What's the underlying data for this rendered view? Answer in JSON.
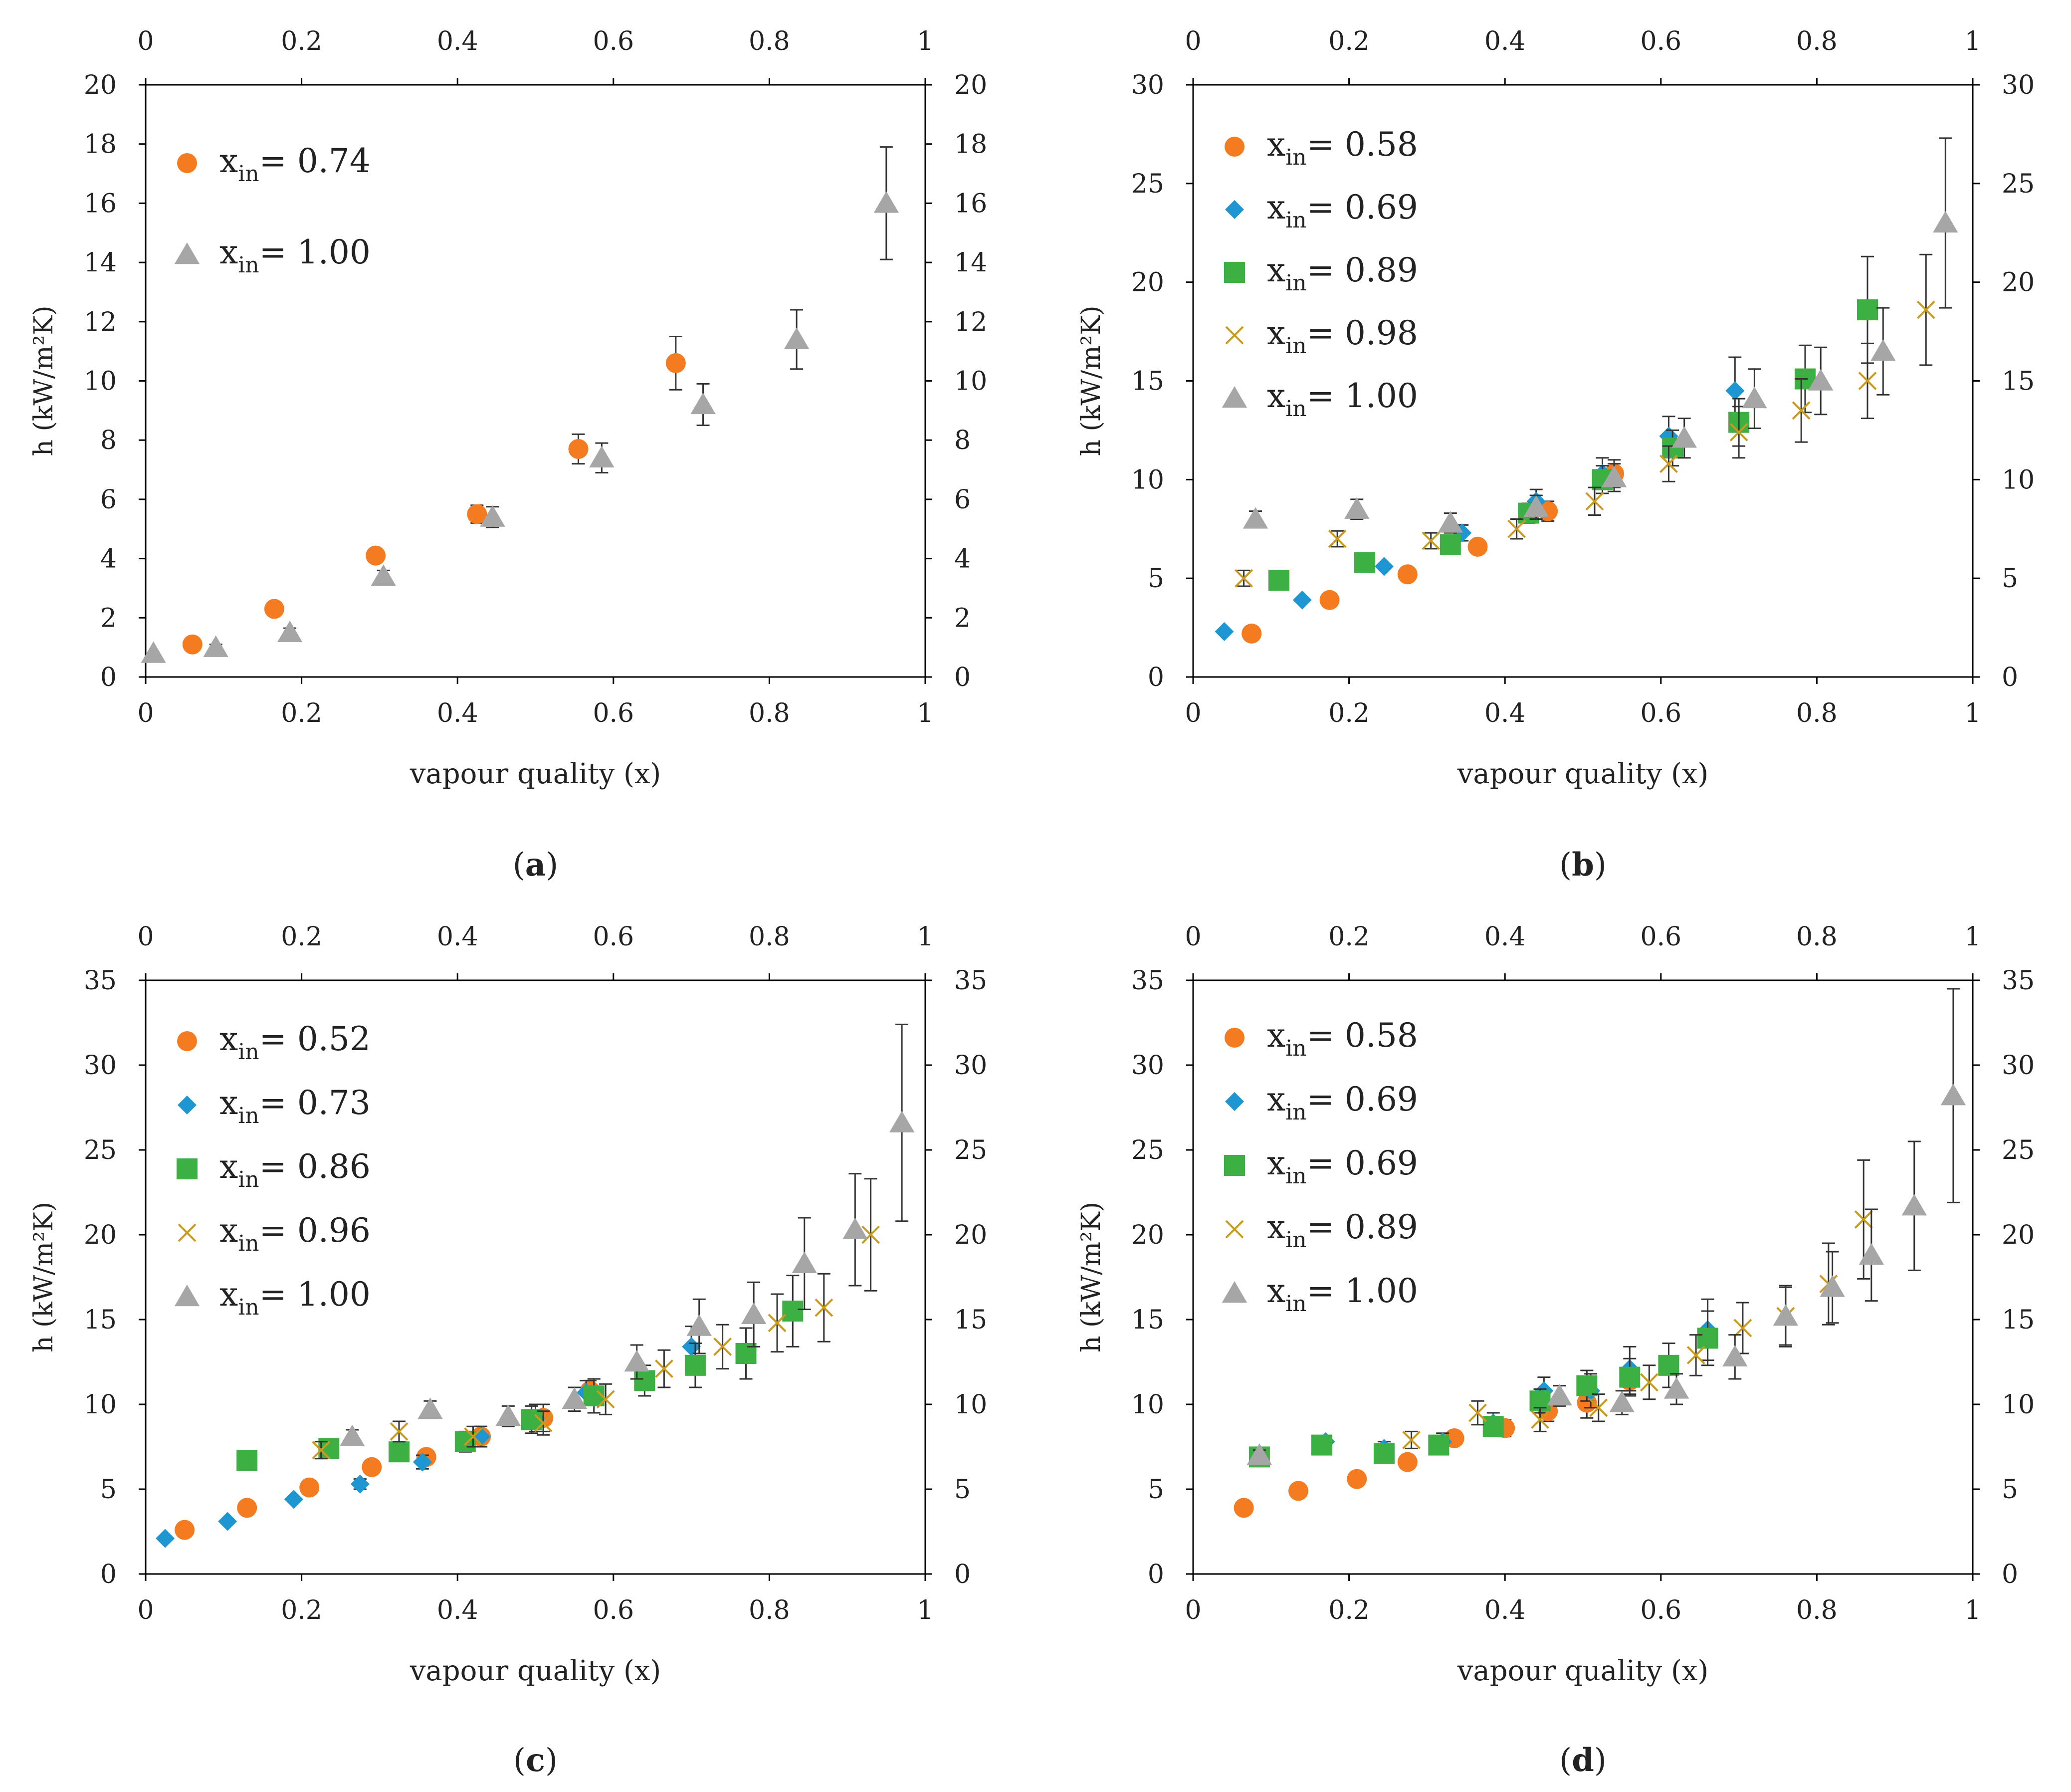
{
  "figure_colors": {
    "orange": "#f47b20",
    "blue": "#1e96d2",
    "green": "#3cb043",
    "gold": "#c99a1e",
    "gray": "#a6a6a6",
    "axis": "#000000",
    "errorbar": "#333333"
  },
  "chart_data": [
    {
      "type": "scatter",
      "panel_label": "(a)",
      "panel_letter": "a",
      "xlabel": "vapour quality (x)",
      "ylabel": "h (kW/m²K)",
      "xlim": [
        0,
        1
      ],
      "ylim": [
        0,
        20
      ],
      "x_ticks": [
        "0",
        "0.2",
        "0.4",
        "0.6",
        "0.8",
        "1"
      ],
      "y_ticks": [
        "0",
        "2",
        "4",
        "6",
        "8",
        "10",
        "12",
        "14",
        "16",
        "18",
        "20"
      ],
      "series": [
        {
          "name": "x_in= 0.74",
          "legend_var": "x",
          "legend_sub": "in",
          "legend_value": "= 0.74",
          "marker": "circle",
          "color": "#f47b20",
          "points": [
            [
              0.06,
              1.1,
              0
            ],
            [
              0.165,
              2.3,
              0
            ],
            [
              0.295,
              4.1,
              0
            ],
            [
              0.425,
              5.5,
              0.3
            ],
            [
              0.555,
              7.7,
              0.5
            ],
            [
              0.68,
              10.6,
              0.9
            ]
          ]
        },
        {
          "name": "x_in= 1.00",
          "legend_var": "x",
          "legend_sub": "in",
          "legend_value": "= 1.00",
          "marker": "triangle",
          "color": "#a6a6a6",
          "points": [
            [
              0.01,
              0.8,
              0
            ],
            [
              0.09,
              1.0,
              0.1
            ],
            [
              0.185,
              1.5,
              0.15
            ],
            [
              0.305,
              3.4,
              0.2
            ],
            [
              0.445,
              5.4,
              0.35
            ],
            [
              0.585,
              7.4,
              0.5
            ],
            [
              0.715,
              9.2,
              0.7
            ],
            [
              0.835,
              11.4,
              1.0
            ],
            [
              0.95,
              16.0,
              1.9
            ]
          ]
        }
      ]
    },
    {
      "type": "scatter",
      "panel_label": "(b)",
      "panel_letter": "b",
      "xlabel": "vapour quality (x)",
      "ylabel": "h (kW/m²K)",
      "xlim": [
        0,
        1
      ],
      "ylim": [
        0,
        30
      ],
      "x_ticks": [
        "0",
        "0.2",
        "0.4",
        "0.6",
        "0.8",
        "1"
      ],
      "y_ticks": [
        "0",
        "5",
        "10",
        "15",
        "20",
        "25",
        "30"
      ],
      "series": [
        {
          "name": "x_in= 0.58",
          "legend_var": "x",
          "legend_sub": "in",
          "legend_value": "= 0.58",
          "marker": "circle",
          "color": "#f47b20",
          "points": [
            [
              0.075,
              2.2,
              0
            ],
            [
              0.175,
              3.9,
              0
            ],
            [
              0.275,
              5.2,
              0
            ],
            [
              0.365,
              6.6,
              0.3
            ],
            [
              0.455,
              8.4,
              0.5
            ],
            [
              0.54,
              10.3,
              0.7
            ]
          ]
        },
        {
          "name": "x_in= 0.69",
          "legend_var": "x",
          "legend_sub": "in",
          "legend_value": "= 0.69",
          "marker": "diamond",
          "color": "#1e96d2",
          "points": [
            [
              0.04,
              2.3,
              0
            ],
            [
              0.14,
              3.9,
              0
            ],
            [
              0.245,
              5.6,
              0
            ],
            [
              0.345,
              7.3,
              0.4
            ],
            [
              0.44,
              8.9,
              0.6
            ],
            [
              0.525,
              10.3,
              0.8
            ],
            [
              0.61,
              12.2,
              1.0
            ],
            [
              0.695,
              14.5,
              1.7
            ]
          ]
        },
        {
          "name": "x_in= 0.89",
          "legend_var": "x",
          "legend_sub": "in",
          "legend_value": "= 0.89",
          "marker": "square",
          "color": "#3cb043",
          "points": [
            [
              0.11,
              4.9,
              0
            ],
            [
              0.22,
              5.8,
              0
            ],
            [
              0.33,
              6.7,
              0.3
            ],
            [
              0.43,
              8.3,
              0.5
            ],
            [
              0.525,
              10.0,
              0.7
            ],
            [
              0.615,
              11.6,
              0.9
            ],
            [
              0.7,
              12.9,
              1.2
            ],
            [
              0.785,
              15.1,
              1.7
            ],
            [
              0.865,
              18.6,
              2.7
            ]
          ]
        },
        {
          "name": "x_in= 0.98",
          "legend_var": "x",
          "legend_sub": "in",
          "legend_value": "= 0.98",
          "marker": "cross",
          "color": "#c99a1e",
          "points": [
            [
              0.065,
              5.0,
              0.4
            ],
            [
              0.185,
              7.0,
              0.4
            ],
            [
              0.305,
              6.9,
              0.4
            ],
            [
              0.415,
              7.5,
              0.5
            ],
            [
              0.515,
              8.9,
              0.7
            ],
            [
              0.61,
              10.8,
              0.9
            ],
            [
              0.7,
              12.4,
              1.3
            ],
            [
              0.78,
              13.5,
              1.6
            ],
            [
              0.865,
              15.0,
              1.9
            ],
            [
              0.94,
              18.6,
              2.8
            ]
          ]
        },
        {
          "name": "x_in= 1.00",
          "legend_var": "x",
          "legend_sub": "in",
          "legend_value": "= 1.00",
          "marker": "triangle",
          "color": "#a6a6a6",
          "points": [
            [
              0.08,
              8.0,
              0.4
            ],
            [
              0.21,
              8.5,
              0.5
            ],
            [
              0.33,
              7.8,
              0.5
            ],
            [
              0.44,
              8.6,
              0.6
            ],
            [
              0.54,
              10.1,
              0.7
            ],
            [
              0.63,
              12.1,
              1.0
            ],
            [
              0.72,
              14.1,
              1.5
            ],
            [
              0.805,
              15.0,
              1.7
            ],
            [
              0.885,
              16.5,
              2.2
            ],
            [
              0.965,
              23.0,
              4.3
            ]
          ]
        }
      ]
    },
    {
      "type": "scatter",
      "panel_label": "(c)",
      "panel_letter": "c",
      "xlabel": "vapour quality (x)",
      "ylabel": "h (kW/m²K)",
      "xlim": [
        0,
        1
      ],
      "ylim": [
        0,
        35
      ],
      "x_ticks": [
        "0",
        "0.2",
        "0.4",
        "0.6",
        "0.8",
        "1"
      ],
      "y_ticks": [
        "0",
        "5",
        "10",
        "15",
        "20",
        "25",
        "30",
        "35"
      ],
      "series": [
        {
          "name": "x_in= 0.52",
          "legend_var": "x",
          "legend_sub": "in",
          "legend_value": "= 0.52",
          "marker": "circle",
          "color": "#f47b20",
          "points": [
            [
              0.05,
              2.6,
              0
            ],
            [
              0.13,
              3.9,
              0
            ],
            [
              0.21,
              5.1,
              0
            ],
            [
              0.29,
              6.3,
              0
            ],
            [
              0.36,
              6.9,
              0.4
            ],
            [
              0.43,
              8.1,
              0.6
            ],
            [
              0.51,
              9.2,
              0.8
            ],
            [
              0.57,
              10.8,
              0.6
            ]
          ]
        },
        {
          "name": "x_in= 0.73",
          "legend_var": "x",
          "legend_sub": "in",
          "legend_value": "= 0.73",
          "marker": "diamond",
          "color": "#1e96d2",
          "points": [
            [
              0.025,
              2.1,
              0
            ],
            [
              0.105,
              3.1,
              0
            ],
            [
              0.19,
              4.4,
              0
            ],
            [
              0.275,
              5.3,
              0.3
            ],
            [
              0.355,
              6.6,
              0.4
            ],
            [
              0.43,
              8.1,
              0.6
            ],
            [
              0.5,
              9.2,
              0.8
            ],
            [
              0.565,
              10.7,
              0.7
            ],
            [
              0.7,
              13.4,
              1.2
            ]
          ]
        },
        {
          "name": "x_in= 0.86",
          "legend_var": "x",
          "legend_sub": "in",
          "legend_value": "= 0.86",
          "marker": "square",
          "color": "#3cb043",
          "points": [
            [
              0.13,
              6.7,
              0
            ],
            [
              0.235,
              7.4,
              0.5
            ],
            [
              0.325,
              7.2,
              0.5
            ],
            [
              0.41,
              7.8,
              0.6
            ],
            [
              0.495,
              9.1,
              0.8
            ],
            [
              0.575,
              10.5,
              1.0
            ],
            [
              0.64,
              11.4,
              0.9
            ],
            [
              0.705,
              12.3,
              1.3
            ],
            [
              0.77,
              13.0,
              1.5
            ],
            [
              0.83,
              15.5,
              2.1
            ]
          ]
        },
        {
          "name": "x_in= 0.96",
          "legend_var": "x",
          "legend_sub": "in",
          "legend_value": "= 0.96",
          "marker": "cross",
          "color": "#c99a1e",
          "points": [
            [
              0.225,
              7.3,
              0.5
            ],
            [
              0.325,
              8.4,
              0.6
            ],
            [
              0.42,
              8.1,
              0.6
            ],
            [
              0.51,
              8.9,
              0.7
            ],
            [
              0.59,
              10.3,
              0.9
            ],
            [
              0.665,
              12.1,
              1.1
            ],
            [
              0.74,
              13.4,
              1.3
            ],
            [
              0.81,
              14.8,
              1.7
            ],
            [
              0.87,
              15.7,
              2.0
            ],
            [
              0.93,
              20.0,
              3.3
            ]
          ]
        },
        {
          "name": "x_in= 1.00",
          "legend_var": "x",
          "legend_sub": "in",
          "legend_value": "= 1.00",
          "marker": "triangle",
          "color": "#a6a6a6",
          "points": [
            [
              0.265,
              8.1,
              0.4
            ],
            [
              0.365,
              9.7,
              0.5
            ],
            [
              0.465,
              9.3,
              0.6
            ],
            [
              0.55,
              10.3,
              0.7
            ],
            [
              0.63,
              12.5,
              1.0
            ],
            [
              0.71,
              14.6,
              1.6
            ],
            [
              0.78,
              15.3,
              1.9
            ],
            [
              0.845,
              18.3,
              2.7
            ],
            [
              0.91,
              20.3,
              3.3
            ],
            [
              0.97,
              26.6,
              5.8
            ]
          ]
        }
      ]
    },
    {
      "type": "scatter",
      "panel_label": "(d)",
      "panel_letter": "d",
      "xlabel": "vapour quality (x)",
      "ylabel": "h (kW/m²K)",
      "xlim": [
        0,
        1
      ],
      "ylim": [
        0,
        35
      ],
      "x_ticks": [
        "0",
        "0.2",
        "0.4",
        "0.6",
        "0.8",
        "1"
      ],
      "y_ticks": [
        "0",
        "5",
        "10",
        "15",
        "20",
        "25",
        "30",
        "35"
      ],
      "series": [
        {
          "name": "x_in= 0.58",
          "legend_var": "x",
          "legend_sub": "in",
          "legend_value": "= 0.58",
          "marker": "circle",
          "color": "#f47b20",
          "points": [
            [
              0.065,
              3.9,
              0
            ],
            [
              0.135,
              4.9,
              0
            ],
            [
              0.21,
              5.6,
              0
            ],
            [
              0.275,
              6.6,
              0
            ],
            [
              0.335,
              8.0,
              0
            ],
            [
              0.4,
              8.6,
              0.5
            ],
            [
              0.455,
              9.6,
              0.6
            ],
            [
              0.505,
              10.1,
              0.9
            ],
            [
              0.56,
              11.4,
              0.8
            ]
          ]
        },
        {
          "name": "x_in= 0.69",
          "legend_var": "x",
          "legend_sub": "in",
          "legend_value": "= 0.69",
          "marker": "diamond",
          "color": "#1e96d2",
          "points": [
            [
              0.085,
              7.0,
              0
            ],
            [
              0.17,
              7.8,
              0.3
            ],
            [
              0.245,
              7.4,
              0.4
            ],
            [
              0.32,
              7.8,
              0.5
            ],
            [
              0.385,
              8.9,
              0.6
            ],
            [
              0.45,
              10.8,
              0.8
            ],
            [
              0.51,
              10.8,
              1.0
            ],
            [
              0.56,
              12.1,
              1.3
            ],
            [
              0.66,
              14.4,
              1.8
            ]
          ]
        },
        {
          "name": "x_in= 0.69",
          "legend_var": "x",
          "legend_sub": "in",
          "legend_value": "= 0.69",
          "marker": "square",
          "color": "#3cb043",
          "points": [
            [
              0.085,
              6.9,
              0
            ],
            [
              0.165,
              7.6,
              0.3
            ],
            [
              0.245,
              7.1,
              0.4
            ],
            [
              0.315,
              7.6,
              0.4
            ],
            [
              0.385,
              8.7,
              0.5
            ],
            [
              0.445,
              10.2,
              0.7
            ],
            [
              0.505,
              11.1,
              0.9
            ],
            [
              0.56,
              11.6,
              1.1
            ],
            [
              0.61,
              12.3,
              1.3
            ],
            [
              0.66,
              13.9,
              1.6
            ]
          ]
        },
        {
          "name": "x_in= 0.89",
          "legend_var": "x",
          "legend_sub": "in",
          "legend_value": "= 0.89",
          "marker": "cross",
          "color": "#c99a1e",
          "points": [
            [
              0.28,
              7.9,
              0.5
            ],
            [
              0.365,
              9.5,
              0.7
            ],
            [
              0.445,
              9.1,
              0.7
            ],
            [
              0.52,
              9.8,
              0.8
            ],
            [
              0.585,
              11.3,
              1.0
            ],
            [
              0.645,
              12.9,
              1.2
            ],
            [
              0.705,
              14.5,
              1.5
            ],
            [
              0.76,
              15.2,
              1.8
            ],
            [
              0.815,
              17.1,
              2.4
            ],
            [
              0.86,
              20.9,
              3.5
            ]
          ]
        },
        {
          "name": "x_in= 1.00",
          "legend_var": "x",
          "legend_sub": "in",
          "legend_value": "= 1.00",
          "marker": "triangle",
          "color": "#a6a6a6",
          "points": [
            [
              0.085,
              7.0,
              0.3
            ],
            [
              0.47,
              10.5,
              0.6
            ],
            [
              0.55,
              10.1,
              0.7
            ],
            [
              0.62,
              10.9,
              0.9
            ],
            [
              0.695,
              12.8,
              1.3
            ],
            [
              0.76,
              15.2,
              1.7
            ],
            [
              0.82,
              16.9,
              2.1
            ],
            [
              0.87,
              18.8,
              2.7
            ],
            [
              0.925,
              21.7,
              3.8
            ],
            [
              0.975,
              28.2,
              6.3
            ]
          ]
        }
      ]
    }
  ]
}
